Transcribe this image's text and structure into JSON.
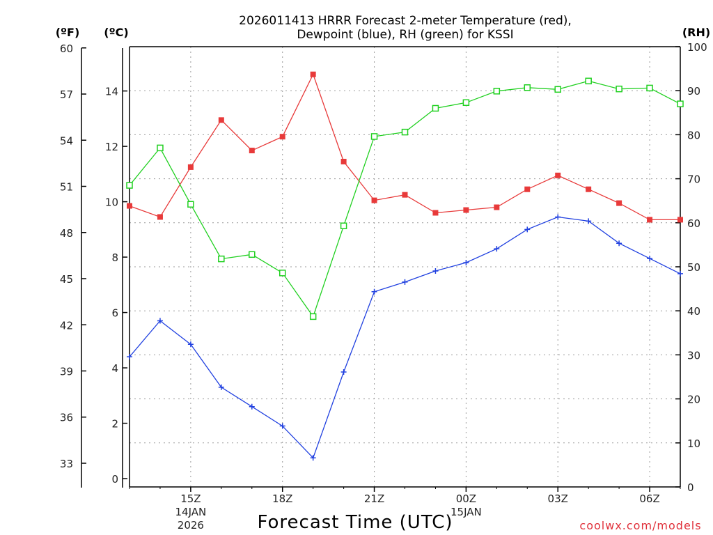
{
  "chart_data": {
    "type": "line",
    "title": [
      "2026011413 HRRR Forecast 2-meter Temperature (red),",
      "Dewpoint (blue), RH (green) for KSSI"
    ],
    "xlabel": "Forecast Time (UTC)",
    "credit": "coolwx.com/models",
    "units": {
      "fahrenheit": "(ºF)",
      "celsius": "(ºC)",
      "rh": "(RH)"
    },
    "x_hours": [
      13,
      14,
      15,
      16,
      17,
      18,
      19,
      20,
      21,
      22,
      23,
      24,
      25,
      26,
      27,
      28,
      29,
      30,
      31
    ],
    "x_ticks": [
      {
        "hour": 15,
        "label": "15Z",
        "sub1": "14JAN",
        "sub2": "2026"
      },
      {
        "hour": 18,
        "label": "18Z",
        "sub1": "",
        "sub2": ""
      },
      {
        "hour": 21,
        "label": "21Z",
        "sub1": "",
        "sub2": ""
      },
      {
        "hour": 24,
        "label": "00Z",
        "sub1": "15JAN",
        "sub2": ""
      },
      {
        "hour": 27,
        "label": "03Z",
        "sub1": "",
        "sub2": ""
      },
      {
        "hour": 30,
        "label": "06Z",
        "sub1": "",
        "sub2": ""
      }
    ],
    "celsius_axis": {
      "ylim": [
        -0.3,
        15.6
      ],
      "ticks": [
        "0",
        "2",
        "4",
        "6",
        "8",
        "10",
        "12",
        "14"
      ]
    },
    "fahrenheit_axis": {
      "ticks": [
        "33",
        "36",
        "39",
        "42",
        "45",
        "48",
        "51",
        "54",
        "57",
        "60"
      ]
    },
    "rh_axis": {
      "ylim": [
        0,
        100
      ],
      "ticks": [
        "0",
        "10",
        "20",
        "30",
        "40",
        "50",
        "60",
        "70",
        "80",
        "90",
        "100"
      ]
    },
    "series": [
      {
        "name": "Temperature",
        "color": "#e83a3a",
        "marker": "filled-square",
        "axis": "celsius",
        "values": [
          9.85,
          9.45,
          11.25,
          12.95,
          11.85,
          12.35,
          14.6,
          11.45,
          10.05,
          10.25,
          9.6,
          9.7,
          9.8,
          10.45,
          10.95,
          10.45,
          9.95,
          9.35,
          9.35
        ]
      },
      {
        "name": "Dewpoint",
        "color": "#2040e0",
        "marker": "plus",
        "axis": "celsius",
        "values": [
          4.4,
          5.7,
          4.85,
          3.3,
          2.6,
          1.9,
          0.75,
          3.85,
          6.75,
          7.1,
          7.5,
          7.8,
          8.3,
          9.0,
          9.45,
          9.3,
          8.5,
          7.95,
          7.4
        ]
      },
      {
        "name": "RH",
        "color": "#20d020",
        "marker": "open-square",
        "axis": "rh",
        "values": [
          68.5,
          77.0,
          64.2,
          51.8,
          52.8,
          48.6,
          38.7,
          59.3,
          79.6,
          80.6,
          86.0,
          87.3,
          89.9,
          90.7,
          90.3,
          92.2,
          90.4,
          90.6,
          87.0
        ]
      }
    ]
  }
}
